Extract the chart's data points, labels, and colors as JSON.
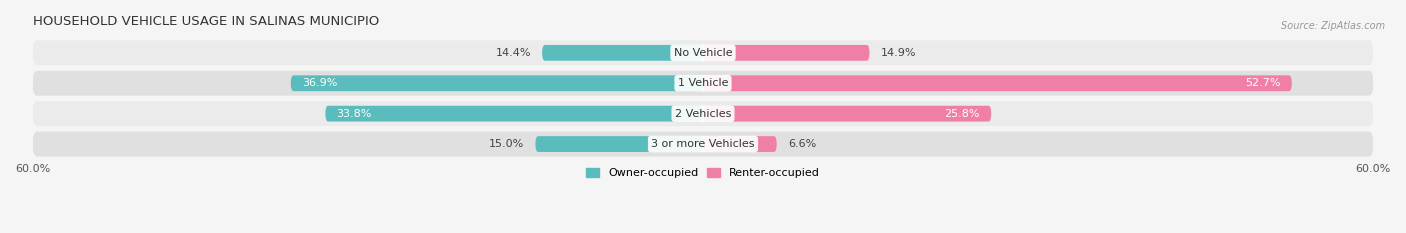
{
  "title": "HOUSEHOLD VEHICLE USAGE IN SALINAS MUNICIPIO",
  "source": "Source: ZipAtlas.com",
  "categories": [
    "No Vehicle",
    "1 Vehicle",
    "2 Vehicles",
    "3 or more Vehicles"
  ],
  "owner_values": [
    14.4,
    36.9,
    33.8,
    15.0
  ],
  "renter_values": [
    14.9,
    52.7,
    25.8,
    6.6
  ],
  "owner_color": "#5bbcbe",
  "renter_color": "#f07fa8",
  "xlim": [
    -60,
    60
  ],
  "title_fontsize": 9.5,
  "label_fontsize": 8.0,
  "bar_height": 0.52,
  "legend_labels": [
    "Owner-occupied",
    "Renter-occupied"
  ],
  "row_colors": [
    "#ebebeb",
    "#e0e0e0"
  ],
  "bg_color": "#f5f5f5"
}
